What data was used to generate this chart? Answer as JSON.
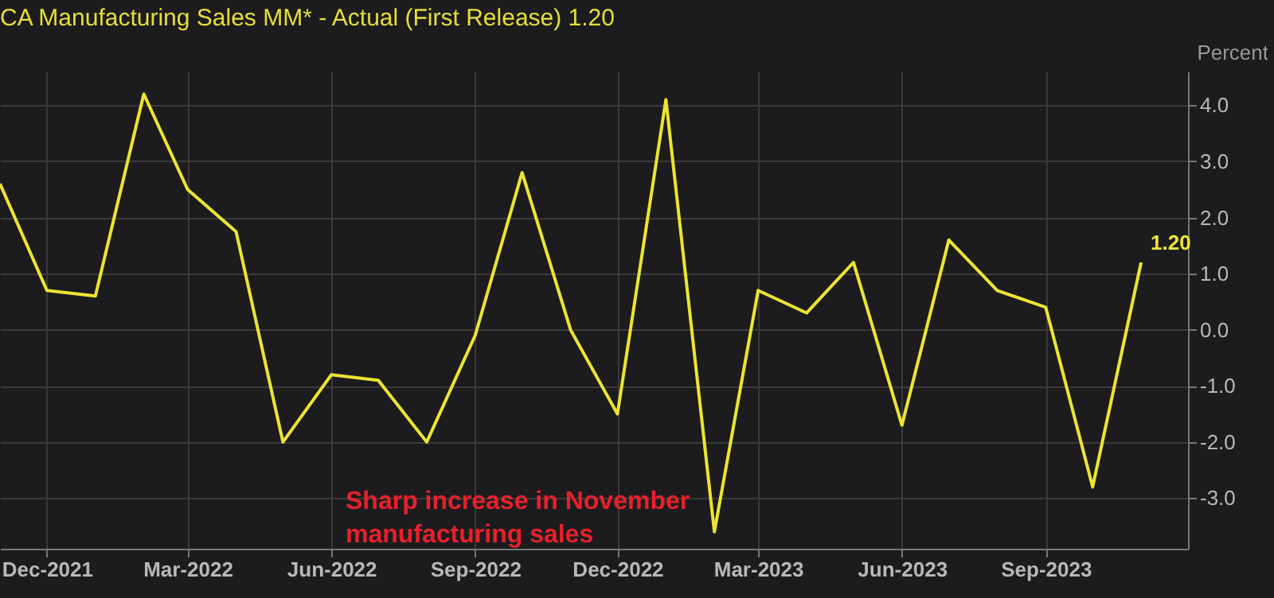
{
  "chart_data": {
    "type": "line",
    "title": "CA Manufacturing Sales MM* - Actual (First Release) 1.20",
    "ylabel": "Percent",
    "x": [
      "2021-11",
      "2021-12",
      "2022-01",
      "2022-02",
      "2022-03",
      "2022-04",
      "2022-05",
      "2022-06",
      "2022-07",
      "2022-08",
      "2022-09",
      "2022-10",
      "2022-11",
      "2022-12",
      "2023-01",
      "2023-02",
      "2023-03",
      "2023-04",
      "2023-05",
      "2023-06",
      "2023-07",
      "2023-08",
      "2023-09",
      "2023-10",
      "2023-11"
    ],
    "series": [
      {
        "color": "#ece433",
        "values": [
          2.6,
          0.7,
          0.6,
          4.2,
          2.5,
          1.75,
          -2.0,
          -0.8,
          -0.9,
          -2.0,
          -0.1,
          2.8,
          0.0,
          -1.5,
          4.1,
          -3.6,
          0.7,
          0.3,
          1.2,
          -1.7,
          1.6,
          0.7,
          0.4,
          -2.8,
          1.2
        ],
        "value_labels": [
          null,
          null,
          null,
          null,
          null,
          null,
          null,
          null,
          null,
          null,
          null,
          null,
          null,
          null,
          null,
          null,
          null,
          null,
          null,
          null,
          null,
          null,
          null,
          null,
          "1.20"
        ]
      }
    ],
    "xlim": [
      "2021-11",
      "2023-12"
    ],
    "xticks": [
      {
        "value": "2021-12",
        "label": "Dec-2021"
      },
      {
        "value": "2022-03",
        "label": "Mar-2022"
      },
      {
        "value": "2022-06",
        "label": "Jun-2022"
      },
      {
        "value": "2022-09",
        "label": "Sep-2022"
      },
      {
        "value": "2022-12",
        "label": "Dec-2022"
      },
      {
        "value": "2023-03",
        "label": "Mar-2023"
      },
      {
        "value": "2023-06",
        "label": "Jun-2023"
      },
      {
        "value": "2023-09",
        "label": "Sep-2023"
      }
    ],
    "ylim": [
      -3.9,
      4.6
    ],
    "yticks": [
      {
        "value": -3,
        "label": "-3.0"
      },
      {
        "value": -2,
        "label": "-2.0"
      },
      {
        "value": -1,
        "label": "-1.0"
      },
      {
        "value": 0,
        "label": "0.0"
      },
      {
        "value": 1,
        "label": "1.0"
      },
      {
        "value": 2,
        "label": "2.0"
      },
      {
        "value": 3,
        "label": "3.0"
      },
      {
        "value": 4,
        "label": "4.0"
      }
    ],
    "grid": true,
    "marker": "none",
    "line_style": "solid",
    "annotations": [
      "Sharp increase in November manufacturing sales"
    ]
  }
}
